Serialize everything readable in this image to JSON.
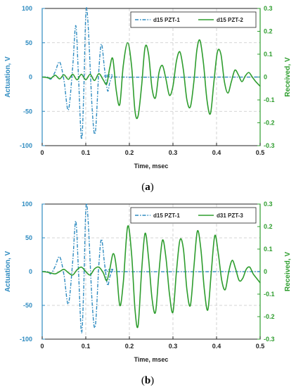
{
  "colors": {
    "actuation": "#2e8bc0",
    "received": "#2e9d2e",
    "grid": "#c8c8c8",
    "axis": "#222222"
  },
  "chart_data": [
    {
      "type": "line",
      "panel_label": {
        "open": "(",
        "letter": "a",
        "close": ")"
      },
      "xlabel": "Time, msec",
      "ylabel_left": "Actuation, V",
      "ylabel_right": "Received, V",
      "xlim": [
        0,
        0.5
      ],
      "ylim_left": [
        -100,
        100
      ],
      "ylim_right": [
        -0.3,
        0.3
      ],
      "x_ticks": [
        "0",
        "0.1",
        "0.2",
        "0.3",
        "0.4",
        "0.5"
      ],
      "left_ticks": [
        "100",
        "50",
        "0",
        "-50",
        "-100"
      ],
      "right_ticks": [
        "0.3",
        "0.2",
        "0.1",
        "0",
        "-0.1",
        "-0.2",
        "-0.3"
      ],
      "grid": true,
      "legend_position": "top-right",
      "series": [
        {
          "name": "d15 PZT-1",
          "axis": "left",
          "style": "dash-dot",
          "color": "#2e8bc0",
          "points": [
            [
              0.0,
              0
            ],
            [
              0.012,
              0
            ],
            [
              0.02,
              -3
            ],
            [
              0.03,
              8
            ],
            [
              0.04,
              22
            ],
            [
              0.05,
              -5
            ],
            [
              0.06,
              -48
            ],
            [
              0.07,
              15
            ],
            [
              0.077,
              75
            ],
            [
              0.083,
              5
            ],
            [
              0.09,
              -90
            ],
            [
              0.095,
              -30
            ],
            [
              0.1,
              90
            ],
            [
              0.105,
              80
            ],
            [
              0.115,
              -50
            ],
            [
              0.122,
              -80
            ],
            [
              0.13,
              10
            ],
            [
              0.136,
              48
            ],
            [
              0.143,
              12
            ],
            [
              0.15,
              -20
            ],
            [
              0.155,
              -8
            ],
            [
              0.162,
              3
            ],
            [
              0.17,
              0
            ],
            [
              0.5,
              0
            ]
          ]
        },
        {
          "name": "d15 PZT-2",
          "axis": "right",
          "style": "solid",
          "color": "#2e9d2e",
          "points": [
            [
              0.0,
              0
            ],
            [
              0.01,
              -0.002
            ],
            [
              0.02,
              -0.005
            ],
            [
              0.03,
              0.008
            ],
            [
              0.04,
              -0.008
            ],
            [
              0.05,
              0.01
            ],
            [
              0.06,
              -0.01
            ],
            [
              0.07,
              0.012
            ],
            [
              0.08,
              -0.012
            ],
            [
              0.09,
              0.012
            ],
            [
              0.1,
              -0.012
            ],
            [
              0.11,
              0.012
            ],
            [
              0.12,
              -0.015
            ],
            [
              0.13,
              0.015
            ],
            [
              0.14,
              -0.012
            ],
            [
              0.148,
              -0.03
            ],
            [
              0.155,
              0.04
            ],
            [
              0.162,
              0.08
            ],
            [
              0.17,
              -0.06
            ],
            [
              0.178,
              -0.12
            ],
            [
              0.186,
              0.05
            ],
            [
              0.196,
              0.15
            ],
            [
              0.205,
              0.05
            ],
            [
              0.213,
              -0.15
            ],
            [
              0.22,
              -0.17
            ],
            [
              0.228,
              -0.04
            ],
            [
              0.236,
              0.13
            ],
            [
              0.244,
              0.1
            ],
            [
              0.252,
              -0.05
            ],
            [
              0.26,
              -0.09
            ],
            [
              0.268,
              0.02
            ],
            [
              0.276,
              0.05
            ],
            [
              0.284,
              -0.01
            ],
            [
              0.292,
              -0.08
            ],
            [
              0.3,
              -0.04
            ],
            [
              0.308,
              0.07
            ],
            [
              0.316,
              0.11
            ],
            [
              0.324,
              0.03
            ],
            [
              0.332,
              -0.1
            ],
            [
              0.34,
              -0.13
            ],
            [
              0.348,
              -0.02
            ],
            [
              0.355,
              0.12
            ],
            [
              0.362,
              0.16
            ],
            [
              0.37,
              0.06
            ],
            [
              0.378,
              -0.1
            ],
            [
              0.386,
              -0.16
            ],
            [
              0.394,
              -0.02
            ],
            [
              0.402,
              0.11
            ],
            [
              0.41,
              0.1
            ],
            [
              0.418,
              -0.02
            ],
            [
              0.426,
              -0.07
            ],
            [
              0.434,
              -0.02
            ],
            [
              0.442,
              0.03
            ],
            [
              0.45,
              0.01
            ],
            [
              0.458,
              -0.02
            ],
            [
              0.466,
              0.005
            ],
            [
              0.474,
              0.02
            ],
            [
              0.482,
              0.0
            ],
            [
              0.49,
              -0.02
            ],
            [
              0.5,
              -0.04
            ]
          ]
        }
      ]
    },
    {
      "type": "line",
      "panel_label": {
        "open": "(",
        "letter": "b",
        "close": ")"
      },
      "xlabel": "Time, msec",
      "ylabel_left": "Actuation, V",
      "ylabel_right": "Received, V",
      "xlim": [
        0,
        0.5
      ],
      "ylim_left": [
        -100,
        100
      ],
      "ylim_right": [
        -0.3,
        0.3
      ],
      "x_ticks": [
        "0",
        "0.1",
        "0.2",
        "0.3",
        "0.4",
        "0.5"
      ],
      "left_ticks": [
        "100",
        "50",
        "0",
        "-50",
        "-100"
      ],
      "right_ticks": [
        "0.3",
        "0.2",
        "0.1",
        "0",
        "-0.1",
        "-0.2",
        "-0.3"
      ],
      "grid": true,
      "legend_position": "top-right",
      "series": [
        {
          "name": "d15 PZT-1",
          "axis": "left",
          "style": "dash-dot",
          "color": "#2e8bc0",
          "points": [
            [
              0.0,
              0
            ],
            [
              0.012,
              0
            ],
            [
              0.02,
              -3
            ],
            [
              0.03,
              8
            ],
            [
              0.04,
              22
            ],
            [
              0.05,
              -5
            ],
            [
              0.06,
              -48
            ],
            [
              0.07,
              15
            ],
            [
              0.077,
              75
            ],
            [
              0.083,
              5
            ],
            [
              0.09,
              -90
            ],
            [
              0.095,
              -30
            ],
            [
              0.1,
              90
            ],
            [
              0.105,
              80
            ],
            [
              0.115,
              -50
            ],
            [
              0.122,
              -80
            ],
            [
              0.13,
              10
            ],
            [
              0.136,
              48
            ],
            [
              0.143,
              12
            ],
            [
              0.15,
              -20
            ],
            [
              0.155,
              -8
            ],
            [
              0.162,
              3
            ],
            [
              0.17,
              0
            ],
            [
              0.5,
              0
            ]
          ]
        },
        {
          "name": "d31 PZT-3",
          "axis": "right",
          "style": "solid",
          "color": "#2e9d2e",
          "points": [
            [
              0.0,
              0
            ],
            [
              0.01,
              -0.002
            ],
            [
              0.02,
              -0.006
            ],
            [
              0.03,
              -0.01
            ],
            [
              0.04,
              0.0
            ],
            [
              0.05,
              0.01
            ],
            [
              0.06,
              -0.005
            ],
            [
              0.07,
              -0.015
            ],
            [
              0.08,
              0.008
            ],
            [
              0.09,
              0.02
            ],
            [
              0.1,
              0.0
            ],
            [
              0.11,
              -0.015
            ],
            [
              0.12,
              0.012
            ],
            [
              0.13,
              0.02
            ],
            [
              0.14,
              -0.005
            ],
            [
              0.148,
              -0.04
            ],
            [
              0.155,
              0.01
            ],
            [
              0.163,
              0.08
            ],
            [
              0.17,
              0.02
            ],
            [
              0.178,
              -0.15
            ],
            [
              0.186,
              -0.05
            ],
            [
              0.196,
              0.2
            ],
            [
              0.205,
              0.08
            ],
            [
              0.213,
              -0.17
            ],
            [
              0.22,
              -0.24
            ],
            [
              0.228,
              0.0
            ],
            [
              0.236,
              0.17
            ],
            [
              0.244,
              0.06
            ],
            [
              0.252,
              -0.12
            ],
            [
              0.26,
              -0.18
            ],
            [
              0.268,
              0.0
            ],
            [
              0.276,
              0.14
            ],
            [
              0.284,
              0.06
            ],
            [
              0.292,
              -0.1
            ],
            [
              0.3,
              -0.18
            ],
            [
              0.308,
              0.0
            ],
            [
              0.316,
              0.14
            ],
            [
              0.324,
              0.1
            ],
            [
              0.332,
              -0.08
            ],
            [
              0.34,
              -0.15
            ],
            [
              0.348,
              0.02
            ],
            [
              0.356,
              0.18
            ],
            [
              0.364,
              0.1
            ],
            [
              0.372,
              -0.08
            ],
            [
              0.38,
              -0.17
            ],
            [
              0.388,
              0.0
            ],
            [
              0.396,
              0.16
            ],
            [
              0.404,
              0.08
            ],
            [
              0.412,
              -0.04
            ],
            [
              0.42,
              -0.08
            ],
            [
              0.428,
              0.0
            ],
            [
              0.436,
              0.05
            ],
            [
              0.444,
              0.01
            ],
            [
              0.452,
              -0.04
            ],
            [
              0.46,
              -0.03
            ],
            [
              0.468,
              0.01
            ],
            [
              0.476,
              0.02
            ],
            [
              0.484,
              -0.01
            ],
            [
              0.492,
              -0.03
            ],
            [
              0.5,
              -0.05
            ]
          ]
        }
      ]
    }
  ]
}
